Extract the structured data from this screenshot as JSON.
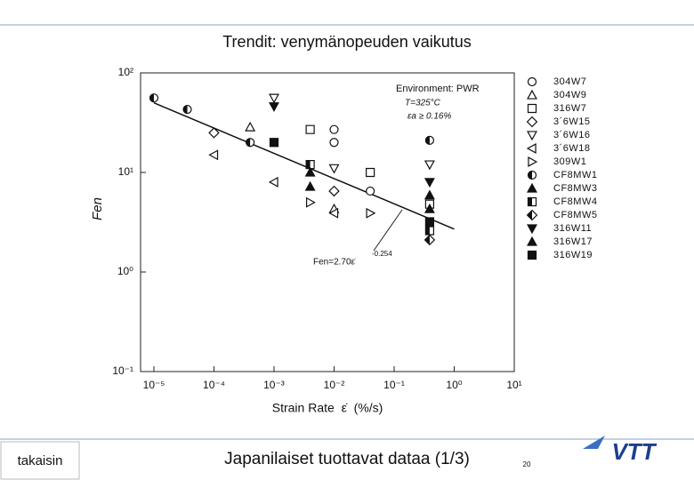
{
  "chart_data": {
    "type": "scatter",
    "title": "Trendit: venymänopeuden vaikutus",
    "footer": "Japanilaiset tuottavat dataa (1/3)",
    "back_button": "takaisin",
    "page_number": "20",
    "logo": "VTT",
    "x_label": "Strain Rate  ε̇  (%/s)",
    "y_label": "Fen",
    "annotations": [
      "Environment: PWR",
      "T=325°C",
      "εa ≥ 0.16%",
      "Fen=2.70ε̇",
      "-0.254"
    ],
    "xscale": "log",
    "yscale": "log",
    "xlim": [
      6e-06,
      10
    ],
    "ylim": [
      0.1,
      100
    ],
    "xticks": [
      {
        "value": 1e-05,
        "label": "10⁻⁵"
      },
      {
        "value": 0.0001,
        "label": "10⁻⁴"
      },
      {
        "value": 0.001,
        "label": "10⁻³"
      },
      {
        "value": 0.01,
        "label": "10⁻²"
      },
      {
        "value": 0.1,
        "label": "10⁻¹"
      },
      {
        "value": 1,
        "label": "10⁰"
      },
      {
        "value": 10,
        "label": "10¹"
      }
    ],
    "yticks": [
      {
        "value": 0.1,
        "label": "10⁻¹"
      },
      {
        "value": 1,
        "label": "10⁰"
      },
      {
        "value": 10,
        "label": "10¹"
      },
      {
        "value": 100,
        "label": "10²"
      }
    ],
    "legend": "right",
    "fit_line": {
      "color": "#111111",
      "x": [
        1e-05,
        1
      ],
      "y": [
        50,
        2.7
      ]
    },
    "series": [
      {
        "name": "304W7",
        "marker": "circle",
        "color": "#111111",
        "x": [
          0.01,
          0.01,
          0.04
        ],
        "y": [
          27,
          20,
          6.5
        ]
      },
      {
        "name": "304W9",
        "marker": "triangle-up",
        "color": "#111111",
        "x": [
          0.0004,
          0.01
        ],
        "y": [
          28.5,
          4.3
        ]
      },
      {
        "name": "316W7",
        "marker": "square",
        "color": "#111111",
        "x": [
          0.004,
          0.04,
          0.39
        ],
        "y": [
          27,
          10,
          4.8
        ]
      },
      {
        "name": "3´6W15",
        "marker": "diamond",
        "color": "#111111",
        "x": [
          0.0001,
          0.01
        ],
        "y": [
          25,
          6.5
        ]
      },
      {
        "name": "3´6W16",
        "marker": "triangle-down",
        "color": "#111111",
        "x": [
          0.001,
          0.01,
          0.39
        ],
        "y": [
          56,
          11,
          12
        ]
      },
      {
        "name": "3´6W18",
        "marker": "triangle-left",
        "color": "#111111",
        "x": [
          0.0001,
          0.001,
          0.01
        ],
        "y": [
          15,
          8,
          3.9
        ]
      },
      {
        "name": "309W1",
        "marker": "triangle-right",
        "color": "#111111",
        "x": [
          0.004,
          0.04
        ],
        "y": [
          5,
          3.9
        ]
      },
      {
        "name": "CF8MW1",
        "marker": "half-circle",
        "color": "#111111",
        "x": [
          1e-05,
          3.6e-05,
          0.0004,
          0.39
        ],
        "y": [
          56,
          43,
          20,
          21
        ]
      },
      {
        "name": "CF8MW3",
        "marker": "triangle-up-filled",
        "color": "#111111",
        "x": [
          0.004,
          0.39
        ],
        "y": [
          7.2,
          4.3
        ]
      },
      {
        "name": "CF8MW4",
        "marker": "half-square",
        "color": "#111111",
        "x": [
          0.004,
          0.39
        ],
        "y": [
          12,
          2.6
        ]
      },
      {
        "name": "CF8MW5",
        "marker": "half-diamond",
        "color": "#111111",
        "x": [
          0.39
        ],
        "y": [
          2.1
        ]
      },
      {
        "name": "316W11",
        "marker": "triangle-down-filled",
        "color": "#111111",
        "x": [
          0.001,
          0.39
        ],
        "y": [
          46,
          8
        ]
      },
      {
        "name": "316W17",
        "marker": "triangle-up-filled",
        "color": "#111111",
        "x": [
          0.004,
          0.39
        ],
        "y": [
          10,
          5.9
        ]
      },
      {
        "name": "316W19",
        "marker": "square-filled",
        "color": "#111111",
        "x": [
          0.001,
          0.39
        ],
        "y": [
          20,
          3.2
        ]
      }
    ]
  }
}
